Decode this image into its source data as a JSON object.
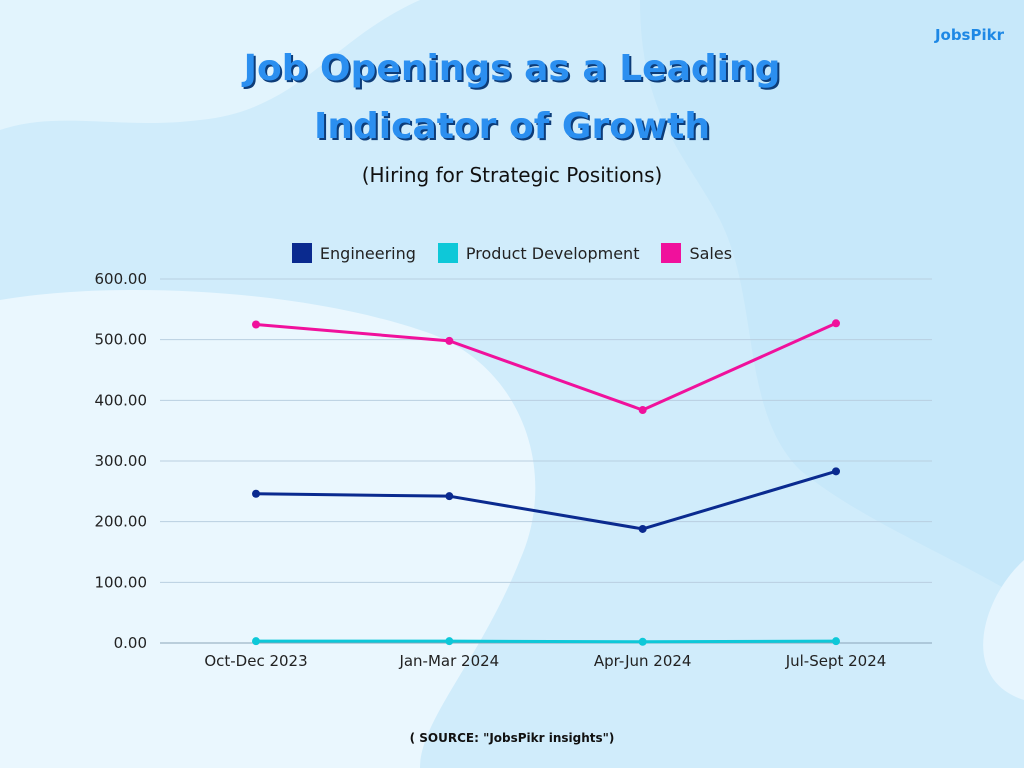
{
  "brand": "JobsPikr",
  "title_lines": [
    "Job Openings as a Leading",
    "Indicator of Growth"
  ],
  "subtitle": "(Hiring for Strategic Positions)",
  "source": "( SOURCE: \"JobsPikr insights\")",
  "colors": {
    "engineering": "#0a2a8f",
    "product": "#0ec8d8",
    "sales": "#f0119c",
    "grid": "#b9cfe0"
  },
  "chart_data": {
    "type": "line",
    "title": "Job Openings as a Leading Indicator of Growth",
    "subtitle": "(Hiring for Strategic Positions)",
    "categories": [
      "Oct-Dec 2023",
      "Jan-Mar 2024",
      "Apr-Jun 2024",
      "Jul-Sept 2024"
    ],
    "y_ticks": [
      "0.00",
      "100.00",
      "200.00",
      "300.00",
      "400.00",
      "500.00",
      "600.00"
    ],
    "ylim": [
      0,
      600
    ],
    "xlabel": "",
    "ylabel": "",
    "grid": true,
    "legend_position": "top-center",
    "series": [
      {
        "name": "Engineering",
        "values": [
          246,
          242,
          188,
          283
        ],
        "color": "#0a2a8f"
      },
      {
        "name": "Product Development",
        "values": [
          3,
          3,
          2,
          3
        ],
        "color": "#0ec8d8"
      },
      {
        "name": "Sales",
        "values": [
          525,
          498,
          384,
          527
        ],
        "color": "#f0119c"
      }
    ]
  }
}
